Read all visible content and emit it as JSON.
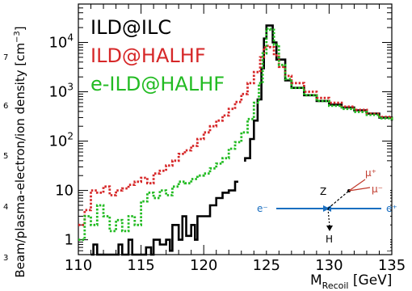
{
  "chart_data": {
    "type": "line",
    "title": "",
    "xlabel": {
      "main": "M",
      "sub": "Recoil",
      "unit": " [GeV]"
    },
    "ylabel": "Beam/plasma-electron/ion density [cm",
    "ylabel_sup": "−3",
    "ylabel_close": "]",
    "xlim": [
      110,
      135
    ],
    "ylim": [
      0.5,
      60000
    ],
    "yscale": "log",
    "x_ticks": [
      110,
      115,
      120,
      125,
      130,
      135
    ],
    "y_ticks": [
      {
        "value": 1,
        "label": "1"
      },
      {
        "value": 10,
        "label": "10"
      },
      {
        "value": 100,
        "label": "10",
        "exp": "2"
      },
      {
        "value": 1000,
        "label": "10",
        "exp": "3"
      },
      {
        "value": 10000,
        "label": "10",
        "exp": "4"
      }
    ],
    "left_edge_labels": [
      "7",
      "6",
      "5",
      "4",
      "3"
    ],
    "legend_placement": "top-left",
    "series": [
      {
        "name": "ILD@ILC",
        "color": "#000000",
        "style": "solid",
        "points": [
          [
            111.0,
            0.5
          ],
          [
            111.2,
            0.8
          ],
          [
            111.5,
            0.5
          ],
          [
            113.0,
            0.5
          ],
          [
            113.2,
            0.8
          ],
          [
            113.5,
            0.5
          ],
          [
            114.0,
            1.0
          ],
          [
            114.3,
            0.5
          ],
          [
            115.0,
            0.5
          ],
          [
            115.4,
            0.7
          ],
          [
            115.8,
            0.5
          ],
          [
            116.0,
            1.0
          ],
          [
            116.5,
            0.8
          ],
          [
            117.0,
            1.0
          ],
          [
            117.3,
            0.6
          ],
          [
            117.5,
            2.0
          ],
          [
            118.0,
            1.0
          ],
          [
            118.3,
            3.0
          ],
          [
            118.6,
            1.2
          ],
          [
            119.0,
            2.0
          ],
          [
            119.3,
            1.0
          ],
          [
            119.5,
            3.0
          ],
          [
            120.0,
            3.0
          ],
          [
            120.5,
            5.0
          ],
          [
            121.0,
            7.0
          ],
          [
            121.5,
            9.0
          ],
          [
            122.0,
            10.0
          ],
          [
            122.5,
            15.0
          ],
          [
            123.0,
            25.0
          ],
          [
            123.3,
            45.0
          ],
          [
            123.7,
            110.0
          ],
          [
            124.0,
            260.0
          ],
          [
            124.3,
            700.0
          ],
          [
            124.6,
            3000.0
          ],
          [
            124.8,
            12000.0
          ],
          [
            125.0,
            22000.0
          ],
          [
            125.3,
            22000.0
          ],
          [
            125.5,
            10000.0
          ],
          [
            125.8,
            4500.0
          ],
          [
            126.5,
            1700.0
          ],
          [
            127.0,
            1200.0
          ],
          [
            128.0,
            850.0
          ],
          [
            129.0,
            650.0
          ],
          [
            130.0,
            550.0
          ],
          [
            131.0,
            480.0
          ],
          [
            132.0,
            420.0
          ],
          [
            133.0,
            360.0
          ],
          [
            134.0,
            300.0
          ],
          [
            135.0,
            260.0
          ]
        ]
      },
      {
        "name": "ILD@HALHF",
        "color": "#d62728",
        "style": "dotted",
        "points": [
          [
            110.0,
            2.0
          ],
          [
            110.5,
            4.0
          ],
          [
            111.0,
            10.0
          ],
          [
            111.5,
            9.0
          ],
          [
            112.0,
            12.0
          ],
          [
            112.5,
            8.0
          ],
          [
            113.0,
            10.0
          ],
          [
            113.5,
            11.0
          ],
          [
            114.0,
            13.0
          ],
          [
            114.5,
            15.0
          ],
          [
            115.0,
            18.0
          ],
          [
            115.5,
            14.0
          ],
          [
            116.0,
            22.0
          ],
          [
            116.5,
            25.0
          ],
          [
            117.0,
            32.0
          ],
          [
            117.5,
            40.0
          ],
          [
            118.0,
            55.0
          ],
          [
            118.5,
            65.0
          ],
          [
            119.0,
            80.0
          ],
          [
            119.5,
            110.0
          ],
          [
            120.0,
            150.0
          ],
          [
            120.5,
            200.0
          ],
          [
            121.0,
            260.0
          ],
          [
            121.5,
            330.0
          ],
          [
            122.0,
            450.0
          ],
          [
            122.5,
            620.0
          ],
          [
            123.0,
            900.0
          ],
          [
            123.5,
            1500.0
          ],
          [
            124.0,
            2500.0
          ],
          [
            124.5,
            5000.0
          ],
          [
            124.8,
            8000.0
          ],
          [
            125.0,
            8500.0
          ],
          [
            125.3,
            8000.0
          ],
          [
            125.6,
            5500.0
          ],
          [
            126.0,
            3200.0
          ],
          [
            126.5,
            2100.0
          ],
          [
            127.0,
            1500.0
          ],
          [
            128.0,
            1000.0
          ],
          [
            129.0,
            750.0
          ],
          [
            130.0,
            600.0
          ],
          [
            131.0,
            500.0
          ],
          [
            132.0,
            430.0
          ],
          [
            133.0,
            360.0
          ],
          [
            134.0,
            310.0
          ],
          [
            135.0,
            270.0
          ]
        ]
      },
      {
        "name": "e-ILD@HALHF",
        "color": "#22bb22",
        "style": "dotted",
        "points": [
          [
            110.0,
            1.0
          ],
          [
            110.5,
            3.0
          ],
          [
            111.0,
            2.0
          ],
          [
            111.5,
            5.0
          ],
          [
            112.0,
            3.0
          ],
          [
            112.5,
            1.5
          ],
          [
            113.0,
            2.5
          ],
          [
            113.5,
            1.5
          ],
          [
            114.0,
            3.0
          ],
          [
            114.5,
            2.0
          ],
          [
            115.0,
            6.0
          ],
          [
            115.5,
            9.0
          ],
          [
            116.0,
            7.0
          ],
          [
            116.5,
            10.0
          ],
          [
            117.0,
            8.0
          ],
          [
            117.5,
            12.0
          ],
          [
            118.0,
            15.0
          ],
          [
            118.5,
            14.0
          ],
          [
            119.0,
            17.0
          ],
          [
            119.5,
            20.0
          ],
          [
            120.0,
            22.0
          ],
          [
            120.5,
            28.0
          ],
          [
            121.0,
            35.0
          ],
          [
            121.5,
            45.0
          ],
          [
            122.0,
            70.0
          ],
          [
            122.5,
            95.0
          ],
          [
            123.0,
            150.0
          ],
          [
            123.5,
            280.0
          ],
          [
            124.0,
            600.0
          ],
          [
            124.4,
            1500.0
          ],
          [
            124.7,
            6000.0
          ],
          [
            125.0,
            19000.0
          ],
          [
            125.3,
            18000.0
          ],
          [
            125.6,
            9000.0
          ],
          [
            126.0,
            3500.0
          ],
          [
            126.5,
            1800.0
          ],
          [
            127.0,
            1200.0
          ],
          [
            128.0,
            850.0
          ],
          [
            129.0,
            650.0
          ],
          [
            130.0,
            520.0
          ],
          [
            131.0,
            450.0
          ],
          [
            132.0,
            390.0
          ],
          [
            133.0,
            340.0
          ],
          [
            134.0,
            290.0
          ],
          [
            135.0,
            250.0
          ]
        ]
      }
    ],
    "inset": {
      "left_particle": "e⁻",
      "right_particle": "e⁺",
      "mediator": "Z",
      "mu_plus": "μ⁺",
      "mu_minus": "μ⁻",
      "higgs": "H",
      "beam_color": "#1a6fc0",
      "muon_color": "#c0392b"
    }
  }
}
